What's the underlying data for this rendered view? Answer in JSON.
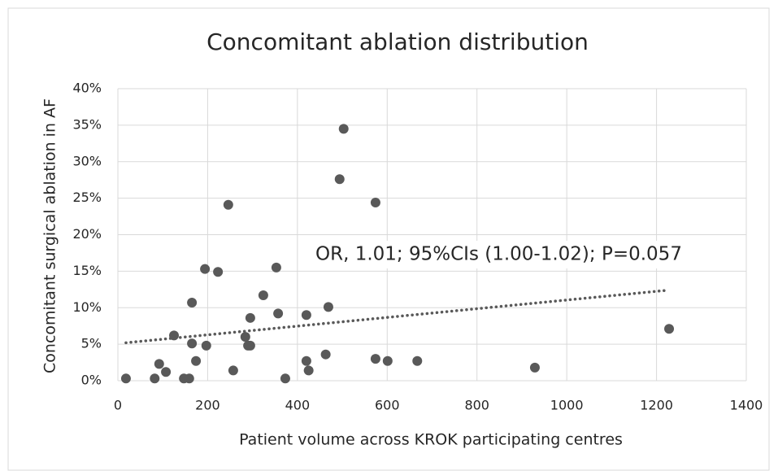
{
  "chart_data": {
    "type": "scatter",
    "title": "Concomitant ablation distribution",
    "x_label": "Patient volume across KROK participating centres",
    "y_label": "Concomitant surgical ablation in AF",
    "annotation": "OR, 1.01; 95%CIs (1.00-1.02); P=0.057",
    "series": [
      {
        "color": "#595959",
        "x": [
          18,
          82,
          92,
          107,
          125,
          147,
          159,
          165,
          165,
          174,
          194,
          197,
          223,
          246,
          257,
          284,
          290,
          295,
          295,
          324,
          353,
          357,
          373,
          420,
          420,
          425,
          463,
          469,
          494,
          503,
          574,
          574,
          601,
          667,
          929,
          1228
        ],
        "values": [
          0.3,
          0.3,
          2.3,
          1.2,
          6.2,
          0.3,
          0.3,
          10.7,
          5.1,
          2.7,
          15.3,
          4.8,
          14.9,
          24.1,
          1.4,
          6.0,
          4.8,
          4.8,
          8.6,
          11.7,
          15.5,
          9.2,
          0.3,
          2.7,
          9.0,
          1.4,
          3.6,
          10.1,
          27.6,
          34.5,
          24.4,
          3.0,
          2.7,
          2.7,
          1.8,
          7.1
        ]
      }
    ],
    "trendline": {
      "color": "#595959",
      "x": [
        18,
        1226
      ],
      "values": [
        5.2,
        12.4
      ]
    },
    "xlim": [
      0,
      1400
    ],
    "xticks": [
      0,
      200,
      400,
      600,
      800,
      1000,
      1200,
      1400
    ],
    "ylim": [
      0,
      40
    ],
    "yticks": [
      {
        "value": 0,
        "label": "0%"
      },
      {
        "value": 5,
        "label": "5%"
      },
      {
        "value": 10,
        "label": "10%"
      },
      {
        "value": 15,
        "label": "15%"
      },
      {
        "value": 20,
        "label": "20%"
      },
      {
        "value": 25,
        "label": "25%"
      },
      {
        "value": 30,
        "label": "30%"
      },
      {
        "value": 35,
        "label": "35%"
      },
      {
        "value": 40,
        "label": "40%"
      }
    ],
    "grid": true
  }
}
